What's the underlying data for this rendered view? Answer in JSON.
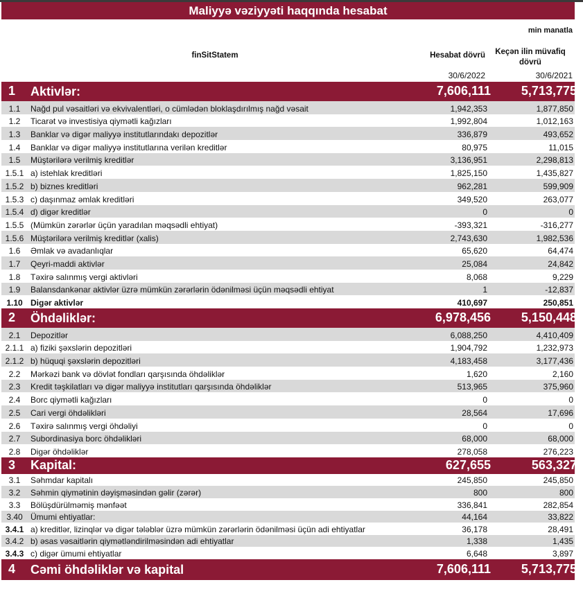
{
  "title": "Maliyyə vəziyyəti haqqında hesabat",
  "unit": "min manatla",
  "header": {
    "label_col": "finSitStatem",
    "current_col": "Hesabat dövrü",
    "previous_col": "Keçən ilin müvafiq dövrü",
    "current_date": "30/6/2022",
    "previous_date": "30/6/2021"
  },
  "sections": [
    {
      "num": "1",
      "label": "Aktivlər:",
      "current": "7,606,111",
      "previous": "5,713,775",
      "rows": [
        {
          "num": "1.1",
          "label": "Nağd pul vəsaitləri və  ekvivalentləri, o cümlədən bloklaşdırılmış nağd vəsait",
          "current": "1,942,353",
          "previous": "1,877,850"
        },
        {
          "num": "1.2",
          "label": "Ticarət və investisiya qiymətli kağızları",
          "current": "1,992,804",
          "previous": "1,012,163"
        },
        {
          "num": "1.3",
          "label": "Banklar və digər maliyyə institutlarındakı depozitlər",
          "current": "336,879",
          "previous": "493,652"
        },
        {
          "num": "1.4",
          "label": "Banklar və digər maliyyə institutlarına verilən kreditlər",
          "current": "80,975",
          "previous": "11,015"
        },
        {
          "num": "1.5",
          "label": "Müştərilərə verilmiş kreditlər",
          "current": "3,136,951",
          "previous": "2,298,813"
        },
        {
          "num": "1.5.1",
          "label": "a) istehlak kreditləri",
          "current": "1,825,150",
          "previous": "1,435,827"
        },
        {
          "num": "1.5.2",
          "label": "b) biznes kreditləri",
          "current": "962,281",
          "previous": "599,909"
        },
        {
          "num": "1.5.3",
          "label": "c) daşınmaz əmlak kreditləri",
          "current": "349,520",
          "previous": "263,077"
        },
        {
          "num": "1.5.4",
          "label": "d) digər kreditlər",
          "current": "0",
          "previous": "0"
        },
        {
          "num": "1.5.5",
          "label": "(Mümkün zərərlər üçün yaradılan məqsədli ehtiyat)",
          "current": "-393,321",
          "previous": "-316,277"
        },
        {
          "num": "1.5.6",
          "label": "Müştərilərə verilmiş kreditlər (xalis)",
          "current": "2,743,630",
          "previous": "1,982,536"
        },
        {
          "num": "1.6",
          "label": "Əmlak və avadanlıqlar",
          "current": "65,620",
          "previous": "64,474"
        },
        {
          "num": "1.7",
          "label": "Qeyri-maddi aktivlər",
          "current": "25,084",
          "previous": "24,842"
        },
        {
          "num": "1.8",
          "label": "Təxirə salınmış vergi aktivləri",
          "current": "8,068",
          "previous": "9,229"
        },
        {
          "num": "1.9",
          "label": "Balansdankənar aktivlər üzrə mümkün zərərlərin ödənilməsi üçün məqsədli ehtiyat",
          "current": "1",
          "previous": "-12,837"
        },
        {
          "num": "1.10",
          "label": "Digər aktivlər",
          "current": "410,697",
          "previous": "250,851",
          "bold": true
        }
      ]
    },
    {
      "num": "2",
      "label": "Öhdəliklər:",
      "current": "6,978,456",
      "previous": "5,150,448",
      "rows": [
        {
          "num": "2.1",
          "label": "Depozitlər",
          "current": "6,088,250",
          "previous": "4,410,409"
        },
        {
          "num": "2.1.1",
          "label": "a) fiziki şəxslərin depozitləri",
          "current": "1,904,792",
          "previous": "1,232,973"
        },
        {
          "num": "2.1.2",
          "label": "b) hüquqi şəxslərin depozitləri",
          "current": "4,183,458",
          "previous": "3,177,436"
        },
        {
          "num": "2.2",
          "label": "Mərkəzi bank və dövlət fondları qarşısında öhdəliklər",
          "current": "1,620",
          "previous": "2,160"
        },
        {
          "num": "2.3",
          "label": "Kredit təşkilatları və digər maliyyə institutları qarşısında öhdəliklər",
          "current": "513,965",
          "previous": "375,960"
        },
        {
          "num": "2.4",
          "label": "Borc qiymətli kağızları",
          "current": "0",
          "previous": "0"
        },
        {
          "num": "2.5",
          "label": "Cari vergi öhdəlikləri",
          "current": "28,564",
          "previous": "17,696"
        },
        {
          "num": "2.6",
          "label": "Təxirə salınmış vergi öhdəliyi",
          "current": "0",
          "previous": "0"
        },
        {
          "num": "2.7",
          "label": "Subordinasiya borc öhdəlikləri",
          "current": "68,000",
          "previous": "68,000"
        },
        {
          "num": "2.8",
          "label": "Digər öhdəliklər",
          "current": "278,058",
          "previous": "276,223"
        }
      ]
    },
    {
      "num": "3",
      "label": "Kapital:",
      "current": "627,655",
      "previous": "563,327",
      "rows": [
        {
          "num": "3.1",
          "label": "Səhmdar kapitalı",
          "current": "245,850",
          "previous": "245,850"
        },
        {
          "num": "3.2",
          "label": "Səhmin qiymətinin dəyişməsindən gəlir (zərər)",
          "current": "800",
          "previous": "800"
        },
        {
          "num": "3.3",
          "label": "Bölüşdürülməmiş mənfəət",
          "current": "336,841",
          "previous": "282,854"
        },
        {
          "num": "3.40",
          "label": "Ümumi ehtiyatlar:",
          "current": "44,164",
          "previous": "33,822"
        },
        {
          "num": "3.4.1",
          "label": "a) kreditlər, lizinqlər və digər tələblər üzrə mümkün zərərlərin ödənilməsi üçün adi ehtiyatlar",
          "current": "36,178",
          "previous": "28,491",
          "bold_num": true
        },
        {
          "num": "3.4.2",
          "label": "b) əsas vəsaitlərin qiymətləndirilməsindən adi ehtiyatlar",
          "current": "1,338",
          "previous": "1,435"
        },
        {
          "num": "3.4.3",
          "label": "c) digər ümumi ehtiyatlar",
          "current": "6,648",
          "previous": "3,897",
          "bold_num": true
        }
      ]
    },
    {
      "num": "4",
      "label": "Cəmi öhdəliklər və kapital",
      "current": "7,606,111",
      "previous": "5,713,775",
      "rows": []
    }
  ]
}
